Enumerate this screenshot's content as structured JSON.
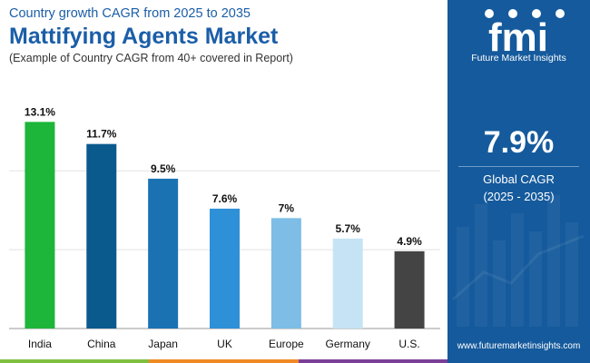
{
  "header": {
    "subtitle": "Country growth CAGR from 2025 to 2035",
    "title": "Mattifying Agents Market",
    "note": "(Example of Country CAGR from 40+ covered in Report)"
  },
  "chart_data": {
    "type": "bar",
    "title": "Mattifying Agents Market",
    "categories": [
      "India",
      "China",
      "Japan",
      "UK",
      "Europe",
      "Germany",
      "U.S."
    ],
    "values": [
      13.1,
      11.7,
      9.5,
      7.6,
      7,
      5.7,
      4.9
    ],
    "value_labels": [
      "13.1%",
      "11.7%",
      "9.5%",
      "7.6%",
      "7%",
      "5.7%",
      "4.9%"
    ],
    "bar_colors": [
      "#1db53a",
      "#0a5a8e",
      "#1b72b3",
      "#2e90d6",
      "#7dbde6",
      "#c5e3f5",
      "#444444"
    ],
    "ylim": [
      0,
      14.5
    ],
    "gridlines": [
      5,
      10
    ],
    "grid": true,
    "xlabel": "",
    "ylabel": ""
  },
  "panel": {
    "logo_text": "fmi",
    "logo_caption": "Future Market Insights",
    "cagr_value": "7.9%",
    "cagr_label": "Global CAGR",
    "cagr_period": "(2025 - 2035)",
    "site_url": "www.futuremarketinsights.com",
    "background": "#155a9c"
  },
  "footer_colors": [
    "#7fbf3f",
    "#f08a24",
    "#7b3f98"
  ]
}
